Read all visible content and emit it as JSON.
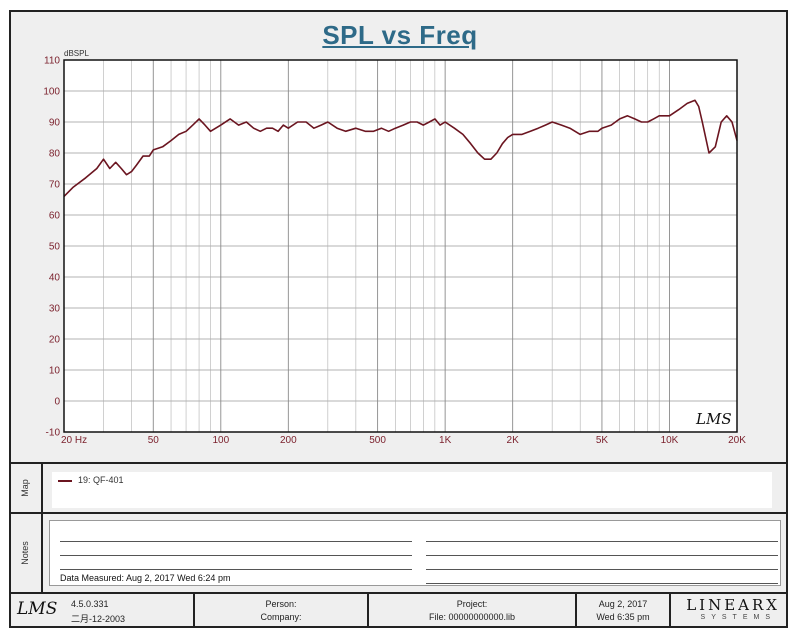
{
  "chart_data": {
    "type": "line",
    "title": "SPL vs Freq",
    "ylabel": "dBSPL",
    "xlabel": "",
    "x_scale": "log",
    "xlim": [
      20,
      20000
    ],
    "ylim": [
      -10,
      110
    ],
    "y_ticks": [
      -10,
      0,
      10,
      20,
      30,
      40,
      50,
      60,
      70,
      80,
      90,
      100,
      110
    ],
    "x_ticks": [
      {
        "value": 20,
        "label": "20 Hz"
      },
      {
        "value": 50,
        "label": "50"
      },
      {
        "value": 100,
        "label": "100"
      },
      {
        "value": 200,
        "label": "200"
      },
      {
        "value": 500,
        "label": "500"
      },
      {
        "value": 1000,
        "label": "1K"
      },
      {
        "value": 2000,
        "label": "2K"
      },
      {
        "value": 5000,
        "label": "5K"
      },
      {
        "value": 10000,
        "label": "10K"
      },
      {
        "value": 20000,
        "label": "20K"
      }
    ],
    "grid": true,
    "series": [
      {
        "name": "19: QF-401",
        "color": "#6b1520",
        "x": [
          20,
          22,
          25,
          28,
          30,
          32,
          34,
          36,
          38,
          40,
          42,
          45,
          48,
          50,
          55,
          60,
          65,
          70,
          75,
          80,
          85,
          90,
          100,
          110,
          120,
          130,
          140,
          150,
          160,
          170,
          180,
          190,
          200,
          220,
          240,
          260,
          280,
          300,
          330,
          360,
          400,
          440,
          480,
          520,
          560,
          600,
          650,
          700,
          750,
          800,
          850,
          900,
          950,
          1000,
          1100,
          1200,
          1300,
          1400,
          1500,
          1600,
          1700,
          1800,
          1900,
          2000,
          2200,
          2400,
          2600,
          2800,
          3000,
          3300,
          3600,
          4000,
          4400,
          4800,
          5000,
          5500,
          6000,
          6500,
          7000,
          7500,
          8000,
          8500,
          9000,
          10000,
          11000,
          12000,
          13000,
          13500,
          14000,
          15000,
          16000,
          17000,
          18000,
          19000,
          20000
        ],
        "y": [
          66,
          69,
          72,
          75,
          78,
          75,
          77,
          75,
          73,
          74,
          76,
          79,
          79,
          81,
          82,
          84,
          86,
          87,
          89,
          91,
          89,
          87,
          89,
          91,
          89,
          90,
          88,
          87,
          88,
          88,
          87,
          89,
          88,
          90,
          90,
          88,
          89,
          90,
          88,
          87,
          88,
          87,
          87,
          88,
          87,
          88,
          89,
          90,
          90,
          89,
          90,
          91,
          89,
          90,
          88,
          86,
          83,
          80,
          78,
          78,
          80,
          83,
          85,
          86,
          86,
          87,
          88,
          89,
          90,
          89,
          88,
          86,
          87,
          87,
          88,
          89,
          91,
          92,
          91,
          90,
          90,
          91,
          92,
          92,
          94,
          96,
          97,
          95,
          90,
          80,
          82,
          90,
          92,
          90,
          84
        ]
      }
    ]
  },
  "watermark": "LMS",
  "map_panel": {
    "label": "Map",
    "legend_entry": "19: QF-401"
  },
  "notes_panel": {
    "label": "Notes",
    "measured": "Data Measured: Aug  2, 2017  Wed  6:24 pm"
  },
  "footer": {
    "logo": "LMS",
    "version": "4.5.0.331",
    "build_date": "二月-12-2003",
    "person_label": "Person:",
    "company_label": "Company:",
    "project_label": "Project:",
    "file_label": "File: 00000000000.lib",
    "date": "Aug  2, 2017",
    "time": "Wed  6:35 pm",
    "brand": "LINEARX",
    "brand_sub": "SYSTEMS"
  }
}
